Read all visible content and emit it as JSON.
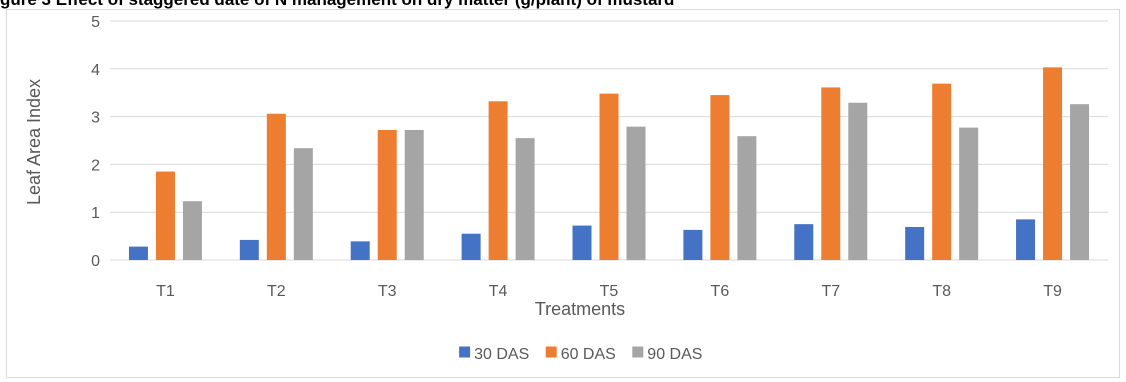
{
  "partial_title": "gure 3 Effect of staggered date of N management on dry matter (g/plant) of mustard",
  "chart_data": {
    "type": "bar",
    "title": "",
    "xlabel": "Treatments",
    "ylabel": "Leaf Area Index",
    "ylim": [
      0,
      5
    ],
    "yticks": [
      0,
      1,
      2,
      3,
      4,
      5
    ],
    "grid": true,
    "legend_position": "bottom",
    "categories": [
      "T1",
      "T2",
      "T3",
      "T4",
      "T5",
      "T6",
      "T7",
      "T8",
      "T9"
    ],
    "series": [
      {
        "name": "30 DAS",
        "color": "#4472c4",
        "values": [
          0.28,
          0.42,
          0.39,
          0.55,
          0.72,
          0.63,
          0.75,
          0.69,
          0.85
        ]
      },
      {
        "name": "60 DAS",
        "color": "#ed7d31",
        "values": [
          1.85,
          3.06,
          2.72,
          3.32,
          3.48,
          3.45,
          3.61,
          3.69,
          4.03
        ]
      },
      {
        "name": "90 DAS",
        "color": "#a5a5a5",
        "values": [
          1.23,
          2.34,
          2.72,
          2.55,
          2.79,
          2.59,
          3.29,
          2.77,
          3.26
        ]
      }
    ]
  }
}
